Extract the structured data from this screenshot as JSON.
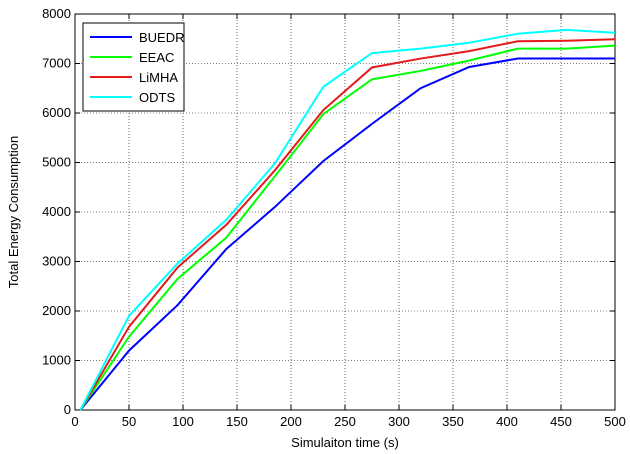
{
  "chart_data": {
    "type": "line",
    "title": "",
    "xlabel": "Simulaiton time (s)",
    "ylabel": "Total Energy Consumption",
    "xlim": [
      0,
      500
    ],
    "ylim": [
      0,
      8000
    ],
    "xticks": [
      0,
      50,
      100,
      150,
      200,
      250,
      300,
      350,
      400,
      450,
      500
    ],
    "yticks": [
      0,
      1000,
      2000,
      3000,
      4000,
      5000,
      6000,
      7000,
      8000
    ],
    "grid": true,
    "legend_position": "top-left",
    "series": [
      {
        "name": "BUEDR",
        "color": "#0000ff",
        "x": [
          5,
          50,
          95,
          140,
          185,
          230,
          275,
          320,
          365,
          410,
          455,
          500
        ],
        "y": [
          0,
          1200,
          2120,
          3250,
          4100,
          5030,
          5780,
          6500,
          6930,
          7100,
          7100,
          7100
        ]
      },
      {
        "name": "EEAC",
        "color": "#00ff00",
        "x": [
          5,
          50,
          95,
          140,
          185,
          230,
          275,
          320,
          365,
          410,
          455,
          500
        ],
        "y": [
          0,
          1480,
          2650,
          3480,
          4720,
          5980,
          6680,
          6850,
          7060,
          7300,
          7300,
          7360
        ]
      },
      {
        "name": "LiMHA",
        "color": "#e41a1c",
        "x": [
          5,
          50,
          95,
          140,
          185,
          230,
          275,
          320,
          365,
          410,
          455,
          500
        ],
        "y": [
          0,
          1680,
          2880,
          3740,
          4840,
          6060,
          6920,
          7100,
          7250,
          7450,
          7460,
          7490
        ]
      },
      {
        "name": "ODTS",
        "color": "#00ffff",
        "x": [
          5,
          50,
          95,
          140,
          185,
          230,
          275,
          320,
          365,
          410,
          455,
          500
        ],
        "y": [
          0,
          1900,
          2960,
          3840,
          4980,
          6530,
          7210,
          7300,
          7420,
          7600,
          7680,
          7620
        ]
      }
    ]
  }
}
